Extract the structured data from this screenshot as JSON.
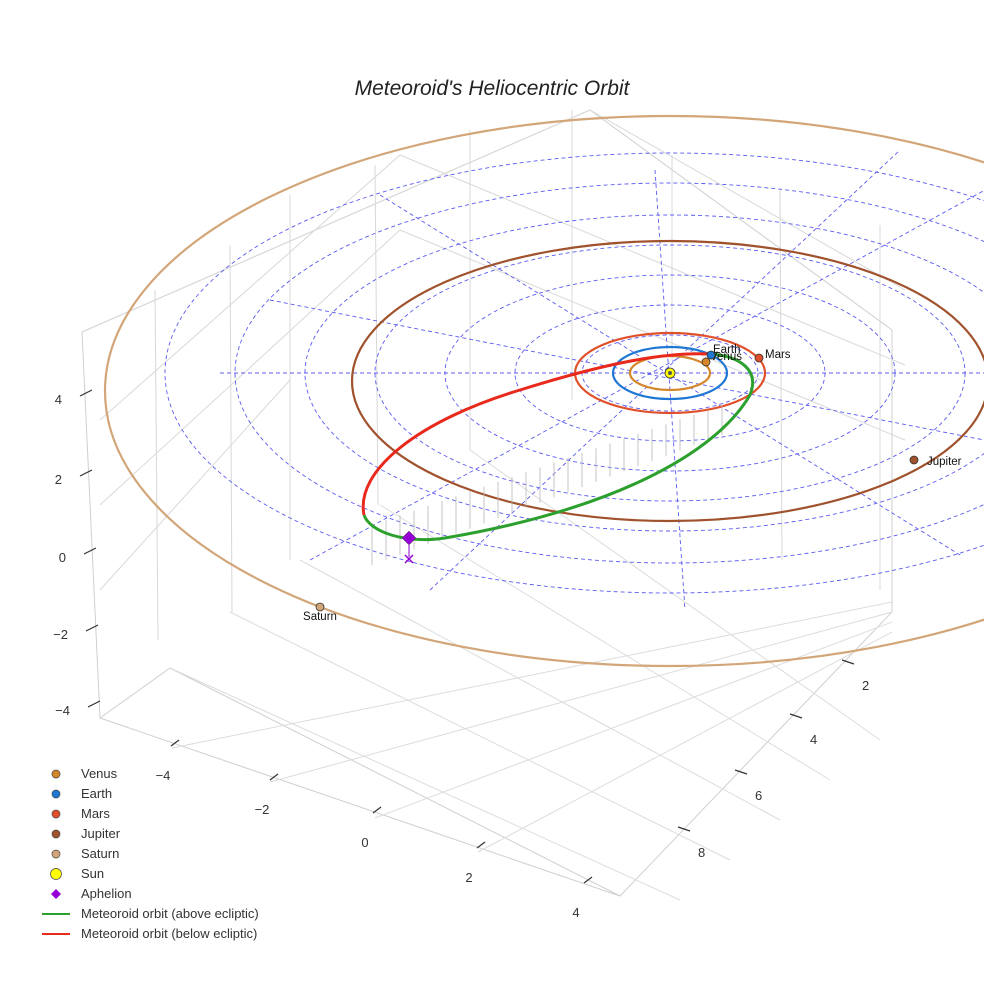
{
  "chart_data": {
    "type": "scatter3d",
    "title": "Meteoroid's Heliocentric Orbit",
    "axes": {
      "x": {
        "ticks": [
          "−4",
          "−2",
          "0",
          "2",
          "4"
        ]
      },
      "y": {
        "ticks": [
          "2",
          "4",
          "6",
          "8"
        ]
      },
      "z": {
        "ticks": [
          "4",
          "2",
          "0",
          "−2",
          "−4"
        ]
      }
    },
    "grid": true,
    "ecliptic_grid": {
      "style": "dashed",
      "color": "#5b5bf0"
    },
    "planets": [
      {
        "name": "Venus",
        "label": "Venus",
        "color": "#d4862a"
      },
      {
        "name": "Earth",
        "label": "Earth",
        "color": "#1f77d4"
      },
      {
        "name": "Mars",
        "label": "Mars",
        "color": "#e0502a"
      },
      {
        "name": "Jupiter",
        "label": "Jupiter",
        "color": "#a0522d"
      },
      {
        "name": "Saturn",
        "label": "Saturn",
        "color": "#d2a679"
      }
    ],
    "sun": {
      "name": "Sun",
      "color": "#ffff00"
    },
    "aphelion": {
      "name": "Aphelion",
      "color": "#9400d3"
    },
    "series": [
      {
        "name": "Meteoroid orbit (above ecliptic)",
        "color": "#2ca02c"
      },
      {
        "name": "Meteoroid orbit (below ecliptic)",
        "color": "#e8291c"
      }
    ],
    "legend": {
      "placement": "bottom-left",
      "items": [
        {
          "label": "Venus",
          "symbol": "circle",
          "color": "#d4862a"
        },
        {
          "label": "Earth",
          "symbol": "circle",
          "color": "#1f77d4"
        },
        {
          "label": "Mars",
          "symbol": "circle",
          "color": "#e0502a"
        },
        {
          "label": "Jupiter",
          "symbol": "circle",
          "color": "#a0522d"
        },
        {
          "label": "Saturn",
          "symbol": "circle",
          "color": "#d2a679"
        },
        {
          "label": "Sun",
          "symbol": "circle",
          "color": "#ffff00"
        },
        {
          "label": "Aphelion",
          "symbol": "diamond",
          "color": "#9400d3"
        },
        {
          "label": "Meteoroid orbit (above ecliptic)",
          "symbol": "line",
          "color": "#2ca02c"
        },
        {
          "label": "Meteoroid orbit (below ecliptic)",
          "symbol": "line",
          "color": "#e8291c"
        }
      ]
    }
  }
}
